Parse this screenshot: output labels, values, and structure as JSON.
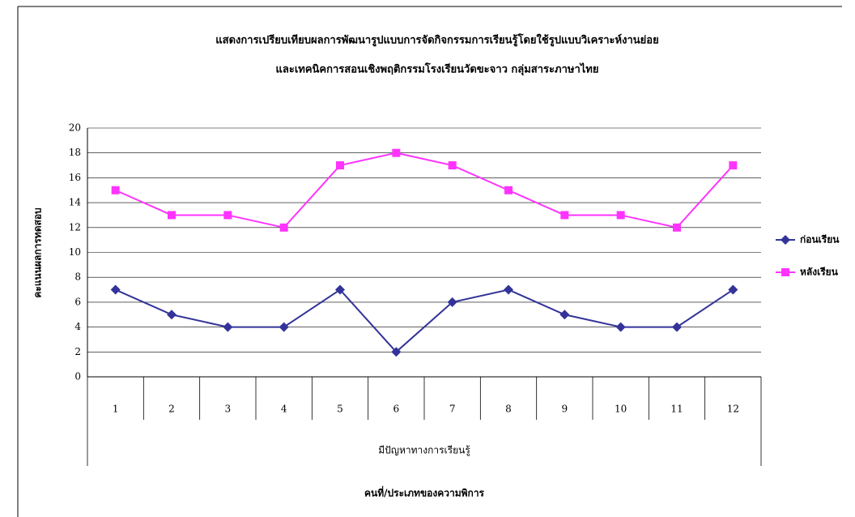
{
  "chart_data": {
    "type": "line",
    "title": [
      "แสดงการเปรียบเทียบผลการพัฒนารูปแบบการจัดกิจกรรมการเรียนรู้โดยใช้รูปแบบวิเคราะห์งานย่อย",
      "และเทคนิคการสอนเชิงพฤติกรรมโรงเรียนวัดขะจาว กลุ่มสาระภาษาไทย"
    ],
    "y_label": "คะแนนผลการทดสอบ",
    "x_group_label": "มีปัญหาทางการเรียนรู้",
    "x_label": "คนที่/ประเภทของความพิการ",
    "categories": [
      "1",
      "2",
      "3",
      "4",
      "5",
      "6",
      "7",
      "8",
      "9",
      "10",
      "11",
      "12"
    ],
    "series": [
      {
        "name": "ก่อนเรียน",
        "color": "#333399",
        "marker": "diamond",
        "values": [
          7,
          5,
          4,
          4,
          7,
          2,
          6,
          7,
          5,
          4,
          4,
          7
        ]
      },
      {
        "name": "หลังเรียน",
        "color": "#ff33ff",
        "marker": "square",
        "values": [
          15,
          13,
          13,
          12,
          17,
          18,
          17,
          15,
          13,
          13,
          12,
          17
        ]
      }
    ],
    "ylim": [
      0,
      20
    ],
    "yticks": [
      0,
      2,
      4,
      6,
      8,
      10,
      12,
      14,
      16,
      18,
      20
    ],
    "grid": true,
    "legend": "right"
  }
}
